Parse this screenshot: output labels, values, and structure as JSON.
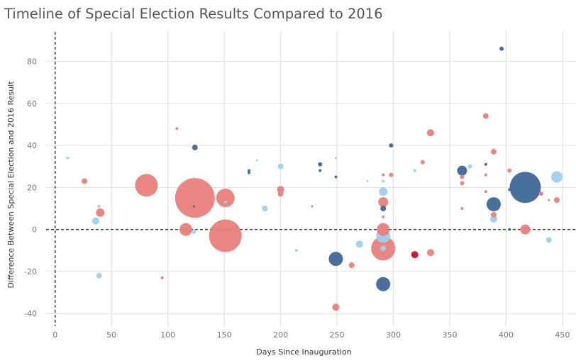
{
  "chart_data": {
    "type": "scatter",
    "title": "Timeline of Special Election Results Compared to 2016",
    "xlabel": "Days Since Inauguration",
    "ylabel": "Difference Between Special Election and 2016 Result",
    "xlim": [
      -8,
      462
    ],
    "ylim": [
      -46,
      94
    ],
    "xticks": [
      0,
      50,
      100,
      150,
      200,
      250,
      300,
      350,
      400,
      450
    ],
    "yticks": [
      -40,
      -20,
      0,
      20,
      40,
      60,
      80
    ],
    "grid": true,
    "reference_lines": {
      "x": 0,
      "y": 0,
      "style": "dashed"
    },
    "colors": {
      "light_red": "#e8807a",
      "light_blue": "#9dd0ec",
      "dark_blue": "#3f6897",
      "dark_red": "#c8102e"
    },
    "points": [
      {
        "x": 11,
        "y": 34,
        "size": 2,
        "color": "light_blue"
      },
      {
        "x": 26,
        "y": 23,
        "size": 4,
        "color": "light_red"
      },
      {
        "x": 36,
        "y": 4,
        "size": 5,
        "color": "light_blue"
      },
      {
        "x": 39,
        "y": 11,
        "size": 2,
        "color": "light_blue"
      },
      {
        "x": 39,
        "y": -22,
        "size": 4,
        "color": "light_blue"
      },
      {
        "x": 40,
        "y": 8,
        "size": 6,
        "color": "light_red"
      },
      {
        "x": 81,
        "y": 21,
        "size": 16,
        "color": "light_red"
      },
      {
        "x": 95,
        "y": -23,
        "size": 2,
        "color": "light_red"
      },
      {
        "x": 108,
        "y": 48,
        "size": 2,
        "color": "light_red"
      },
      {
        "x": 116,
        "y": 0,
        "size": 9,
        "color": "light_red"
      },
      {
        "x": 124,
        "y": 39,
        "size": 4,
        "color": "dark_blue"
      },
      {
        "x": 124,
        "y": 15,
        "size": 28,
        "color": "light_red"
      },
      {
        "x": 123,
        "y": 11,
        "size": 1,
        "color": "dark_blue"
      },
      {
        "x": 123,
        "y": -1,
        "size": 3,
        "color": "light_blue"
      },
      {
        "x": 151,
        "y": 15,
        "size": 13,
        "color": "light_red"
      },
      {
        "x": 151,
        "y": -3,
        "size": 23,
        "color": "light_red"
      },
      {
        "x": 151,
        "y": 13,
        "size": 2,
        "color": "light_blue"
      },
      {
        "x": 172,
        "y": 28,
        "size": 2,
        "color": "dark_blue"
      },
      {
        "x": 172,
        "y": 27,
        "size": 2,
        "color": "dark_blue"
      },
      {
        "x": 179,
        "y": 33,
        "size": 1,
        "color": "light_blue"
      },
      {
        "x": 186,
        "y": 10,
        "size": 4,
        "color": "light_blue"
      },
      {
        "x": 200,
        "y": 30,
        "size": 4,
        "color": "light_blue"
      },
      {
        "x": 200,
        "y": 19,
        "size": 5,
        "color": "light_red"
      },
      {
        "x": 200,
        "y": 17,
        "size": 4,
        "color": "light_red"
      },
      {
        "x": 214,
        "y": -10,
        "size": 2,
        "color": "light_blue"
      },
      {
        "x": 228,
        "y": 11,
        "size": 1,
        "color": "light_red"
      },
      {
        "x": 235,
        "y": 31,
        "size": 3,
        "color": "dark_blue"
      },
      {
        "x": 235,
        "y": 28,
        "size": 2,
        "color": "dark_blue"
      },
      {
        "x": 249,
        "y": 34,
        "size": 1,
        "color": "light_blue"
      },
      {
        "x": 249,
        "y": 25,
        "size": 2,
        "color": "dark_blue"
      },
      {
        "x": 249,
        "y": -14,
        "size": 10,
        "color": "dark_blue"
      },
      {
        "x": 249,
        "y": -37,
        "size": 5,
        "color": "light_red"
      },
      {
        "x": 263,
        "y": -17,
        "size": 4,
        "color": "light_red"
      },
      {
        "x": 270,
        "y": -7,
        "size": 5,
        "color": "light_blue"
      },
      {
        "x": 277,
        "y": 23,
        "size": 1,
        "color": "light_blue"
      },
      {
        "x": 291,
        "y": 26,
        "size": 2,
        "color": "light_red"
      },
      {
        "x": 291,
        "y": 23,
        "size": 2,
        "color": "light_blue"
      },
      {
        "x": 291,
        "y": 18,
        "size": 6,
        "color": "light_blue"
      },
      {
        "x": 291,
        "y": 13,
        "size": 7,
        "color": "light_red"
      },
      {
        "x": 291,
        "y": 10,
        "size": 4,
        "color": "dark_blue"
      },
      {
        "x": 291,
        "y": 6,
        "size": 2,
        "color": "light_red"
      },
      {
        "x": 291,
        "y": 0,
        "size": 9,
        "color": "light_red"
      },
      {
        "x": 291,
        "y": -3,
        "size": 10,
        "color": "light_blue"
      },
      {
        "x": 291,
        "y": -9,
        "size": 17,
        "color": "light_red"
      },
      {
        "x": 291,
        "y": -9,
        "size": 4,
        "color": "light_blue"
      },
      {
        "x": 291,
        "y": -26,
        "size": 10,
        "color": "dark_blue"
      },
      {
        "x": 298,
        "y": 40,
        "size": 3,
        "color": "dark_blue"
      },
      {
        "x": 298,
        "y": 26,
        "size": 3,
        "color": "light_red"
      },
      {
        "x": 319,
        "y": -12,
        "size": 5,
        "color": "dark_red"
      },
      {
        "x": 319,
        "y": 28,
        "size": 2,
        "color": "light_blue"
      },
      {
        "x": 326,
        "y": 32,
        "size": 3,
        "color": "light_red"
      },
      {
        "x": 333,
        "y": 46,
        "size": 5,
        "color": "light_red"
      },
      {
        "x": 333,
        "y": -11,
        "size": 5,
        "color": "light_red"
      },
      {
        "x": 361,
        "y": 28,
        "size": 7,
        "color": "dark_blue"
      },
      {
        "x": 361,
        "y": 25,
        "size": 3,
        "color": "light_red"
      },
      {
        "x": 361,
        "y": 22,
        "size": 3,
        "color": "light_red"
      },
      {
        "x": 361,
        "y": 10,
        "size": 2,
        "color": "light_red"
      },
      {
        "x": 368,
        "y": 30,
        "size": 3,
        "color": "light_blue"
      },
      {
        "x": 382,
        "y": 54,
        "size": 4,
        "color": "light_red"
      },
      {
        "x": 382,
        "y": 31,
        "size": 2,
        "color": "dark_blue"
      },
      {
        "x": 382,
        "y": 26,
        "size": 2,
        "color": "light_red"
      },
      {
        "x": 382,
        "y": 18,
        "size": 2,
        "color": "light_red"
      },
      {
        "x": 389,
        "y": 37,
        "size": 4,
        "color": "light_red"
      },
      {
        "x": 389,
        "y": 12,
        "size": 10,
        "color": "dark_blue"
      },
      {
        "x": 389,
        "y": 7,
        "size": 4,
        "color": "light_red"
      },
      {
        "x": 389,
        "y": 5,
        "size": 5,
        "color": "light_blue"
      },
      {
        "x": 396,
        "y": 86,
        "size": 3,
        "color": "dark_blue"
      },
      {
        "x": 403,
        "y": 28,
        "size": 3,
        "color": "light_red"
      },
      {
        "x": 403,
        "y": 19,
        "size": 2,
        "color": "dark_blue"
      },
      {
        "x": 403,
        "y": 0,
        "size": 2,
        "color": "dark_blue"
      },
      {
        "x": 417,
        "y": 20,
        "size": 22,
        "color": "dark_blue"
      },
      {
        "x": 417,
        "y": 0,
        "size": 7,
        "color": "light_red"
      },
      {
        "x": 431,
        "y": 17,
        "size": 3,
        "color": "light_red"
      },
      {
        "x": 438,
        "y": 14,
        "size": 1,
        "color": "light_red"
      },
      {
        "x": 438,
        "y": -5,
        "size": 4,
        "color": "light_blue"
      },
      {
        "x": 445,
        "y": 25,
        "size": 8,
        "color": "light_blue"
      },
      {
        "x": 445,
        "y": 14,
        "size": 4,
        "color": "light_red"
      }
    ]
  }
}
